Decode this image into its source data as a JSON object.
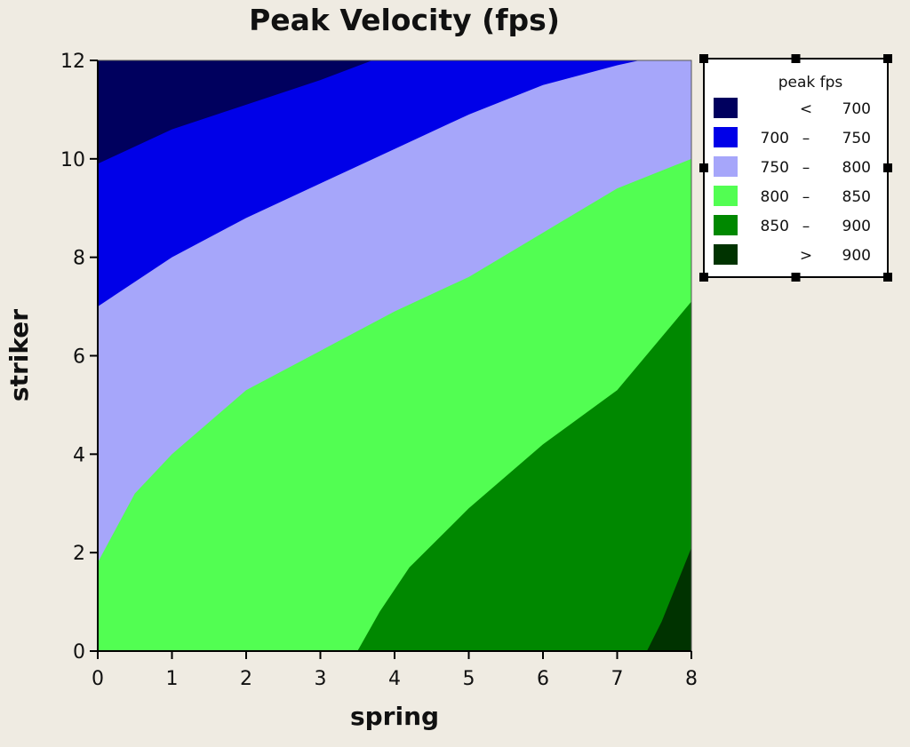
{
  "chart_data": {
    "type": "contour",
    "title": "Peak Velocity (fps)",
    "xlabel": "spring",
    "ylabel": "striker",
    "xlim": [
      0,
      8
    ],
    "ylim": [
      0,
      12
    ],
    "xticks": [
      0,
      1,
      2,
      3,
      4,
      5,
      6,
      7,
      8
    ],
    "yticks": [
      0,
      2,
      4,
      6,
      8,
      10,
      12
    ],
    "legend": {
      "title": "peak fps",
      "placement": "top-right",
      "selected": true,
      "items": [
        {
          "low": "",
          "sep": "<",
          "high": "700",
          "color": "#00005e"
        },
        {
          "low": "700",
          "sep": "–",
          "high": "750",
          "color": "#0000e8"
        },
        {
          "low": "750",
          "sep": "–",
          "high": "800",
          "color": "#a6a6fa"
        },
        {
          "low": "800",
          "sep": "–",
          "high": "850",
          "color": "#52fe52"
        },
        {
          "low": "850",
          "sep": "–",
          "high": "900",
          "color": "#008800"
        },
        {
          "low": "",
          "sep": ">",
          "high": "900",
          "color": "#003300"
        }
      ]
    },
    "bands": [
      {
        "range": "< 700",
        "color": "#00005e"
      },
      {
        "range": "700 – 750",
        "color": "#0000e8"
      },
      {
        "range": "750 – 800",
        "color": "#a6a6fa"
      },
      {
        "range": "800 – 850",
        "color": "#52fe52"
      },
      {
        "range": "850 – 900",
        "color": "#008800"
      },
      {
        "range": "> 900",
        "color": "#003300"
      }
    ],
    "contours": [
      {
        "level": 700,
        "points": [
          [
            0,
            9.9
          ],
          [
            1,
            10.6
          ],
          [
            2,
            11.1
          ],
          [
            3,
            11.6
          ],
          [
            3.7,
            12
          ]
        ]
      },
      {
        "level": 750,
        "points": [
          [
            0,
            7.0
          ],
          [
            1,
            8.0
          ],
          [
            2,
            8.8
          ],
          [
            3,
            9.5
          ],
          [
            4,
            10.2
          ],
          [
            5,
            10.9
          ],
          [
            6,
            11.5
          ],
          [
            7,
            11.9
          ],
          [
            7.3,
            12
          ]
        ]
      },
      {
        "level": 800,
        "points": [
          [
            0,
            1.8
          ],
          [
            0.5,
            3.2
          ],
          [
            1,
            4.0
          ],
          [
            2,
            5.3
          ],
          [
            3,
            6.1
          ],
          [
            4,
            6.9
          ],
          [
            5,
            7.6
          ],
          [
            6,
            8.5
          ],
          [
            7,
            9.4
          ],
          [
            8,
            10.0
          ]
        ]
      },
      {
        "level": 850,
        "points": [
          [
            3.5,
            0
          ],
          [
            3.8,
            0.8
          ],
          [
            4.2,
            1.7
          ],
          [
            5,
            2.9
          ],
          [
            6,
            4.2
          ],
          [
            7,
            5.3
          ],
          [
            8,
            7.1
          ]
        ]
      },
      {
        "level": 900,
        "points": [
          [
            7.4,
            0
          ],
          [
            7.6,
            0.6
          ],
          [
            8,
            2.1
          ]
        ]
      }
    ]
  }
}
